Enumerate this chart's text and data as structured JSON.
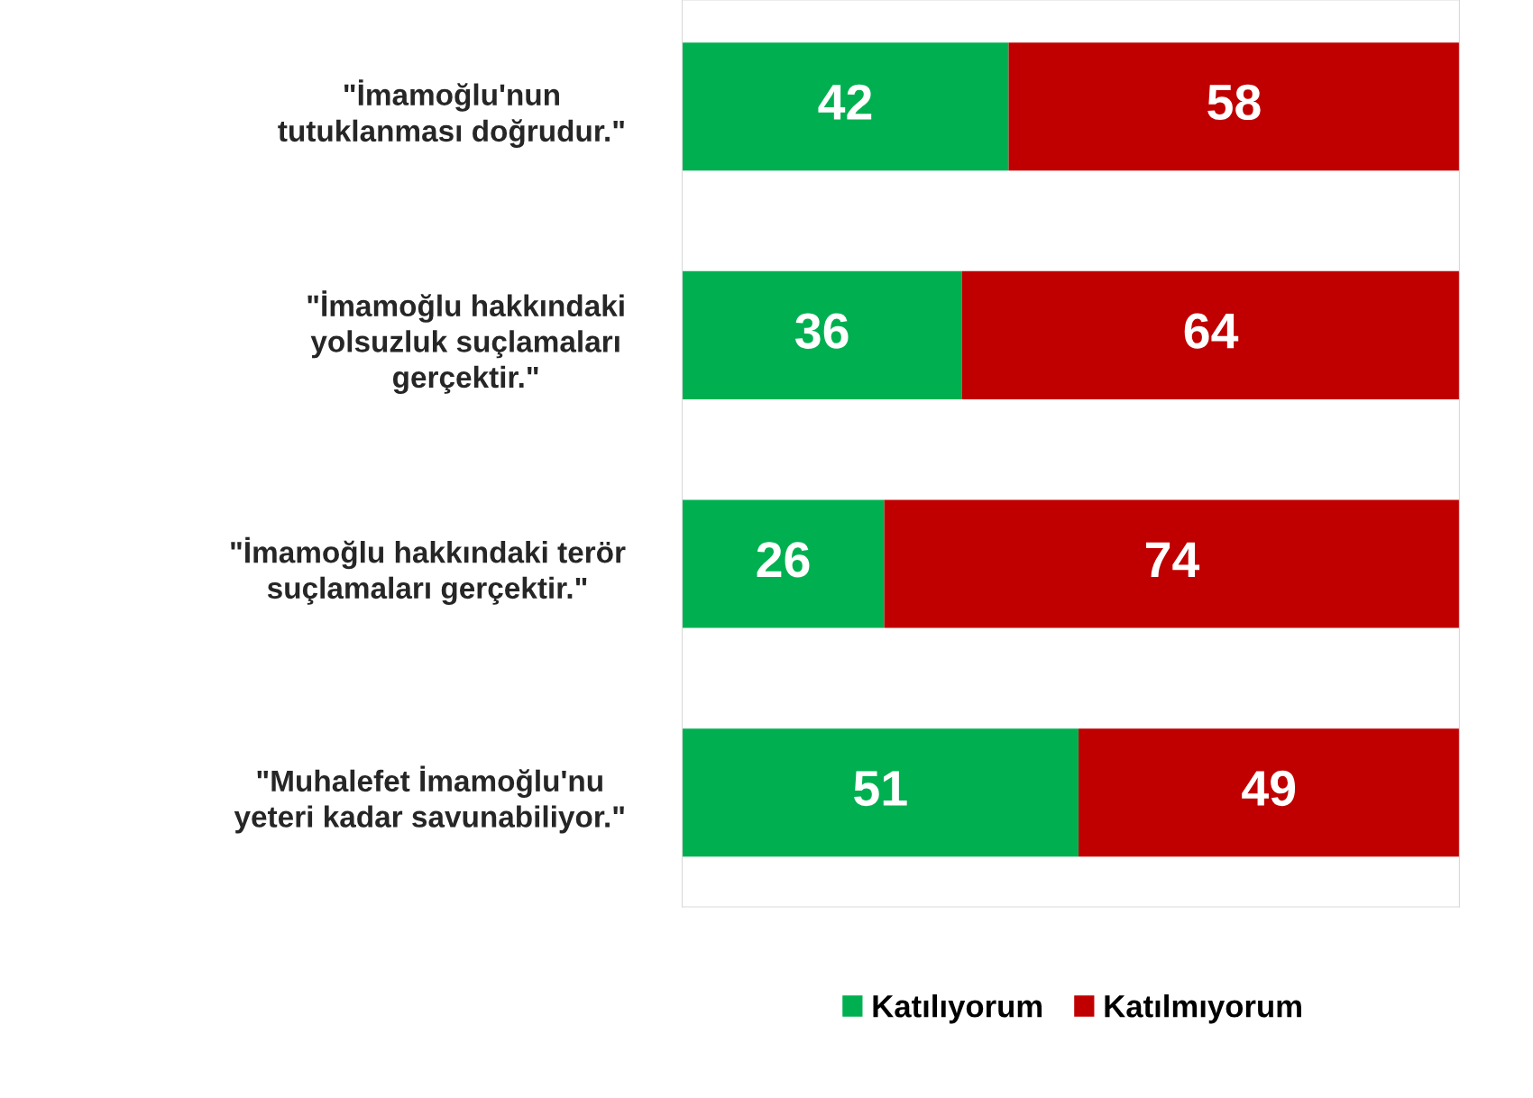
{
  "chart_data": {
    "type": "bar",
    "orientation": "horizontal",
    "stacked": true,
    "categories": [
      "\"İmamoğlu'nun\ntutuklanması doğrudur.\"",
      "\"İmamoğlu hakkındaki\nyolsuzluk suçlamaları\ngerçektir.\"",
      "\"İmamoğlu hakkındaki terör\nsuçlamaları gerçektir.\"",
      "\"Muhalefet İmamoğlu'nu\nyeteri kadar savunabiliyor.\""
    ],
    "series": [
      {
        "name": "Katılıyorum",
        "color": "#00b050",
        "values": [
          42,
          36,
          26,
          51
        ]
      },
      {
        "name": "Katılmıyorum",
        "color": "#c00000",
        "values": [
          58,
          64,
          74,
          49
        ]
      }
    ],
    "xlim": [
      0,
      100
    ],
    "data_labels": true,
    "tick_labels": "y",
    "legend": "bottom",
    "grid": false
  }
}
